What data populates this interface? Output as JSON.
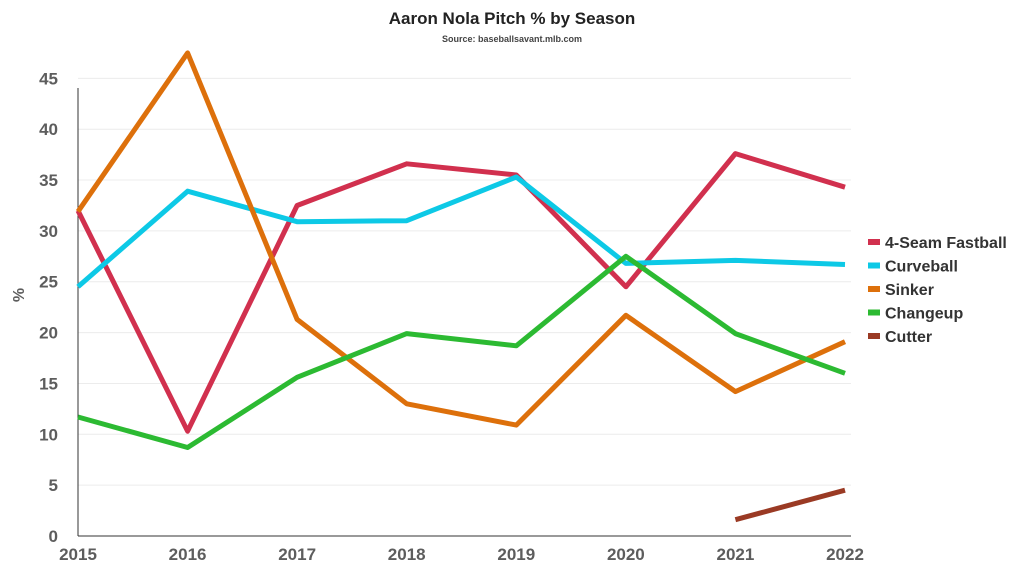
{
  "chart_data": {
    "type": "line",
    "title": "Aaron Nola Pitch % by Season",
    "subtitle": "Source: baseballsavant.mlb.com",
    "xlabel": "",
    "ylabel": "%",
    "x": [
      "2015",
      "2016",
      "2017",
      "2018",
      "2019",
      "2020",
      "2021",
      "2022"
    ],
    "ylim": [
      0,
      47
    ],
    "yticks": [
      0,
      5,
      10,
      15,
      20,
      25,
      30,
      35,
      40,
      45
    ],
    "grid": true,
    "legend_position": "right",
    "series": [
      {
        "name": "4-Seam Fastball",
        "color": "#d1304e",
        "values": [
          32.0,
          10.3,
          32.5,
          36.6,
          35.5,
          24.5,
          37.6,
          34.3
        ]
      },
      {
        "name": "Curveball",
        "color": "#0dc9e6",
        "values": [
          24.5,
          33.9,
          30.9,
          31.0,
          35.3,
          26.8,
          27.1,
          26.7
        ]
      },
      {
        "name": "Sinker",
        "color": "#dd700b",
        "values": [
          31.9,
          47.5,
          21.3,
          13.0,
          10.9,
          21.7,
          14.2,
          19.1
        ]
      },
      {
        "name": "Changeup",
        "color": "#2cba32",
        "values": [
          11.7,
          8.7,
          15.6,
          19.9,
          18.7,
          27.5,
          19.9,
          16.0
        ]
      },
      {
        "name": "Cutter",
        "color": "#9a3a24",
        "values": [
          null,
          null,
          null,
          null,
          null,
          null,
          1.6,
          4.5
        ]
      }
    ]
  }
}
